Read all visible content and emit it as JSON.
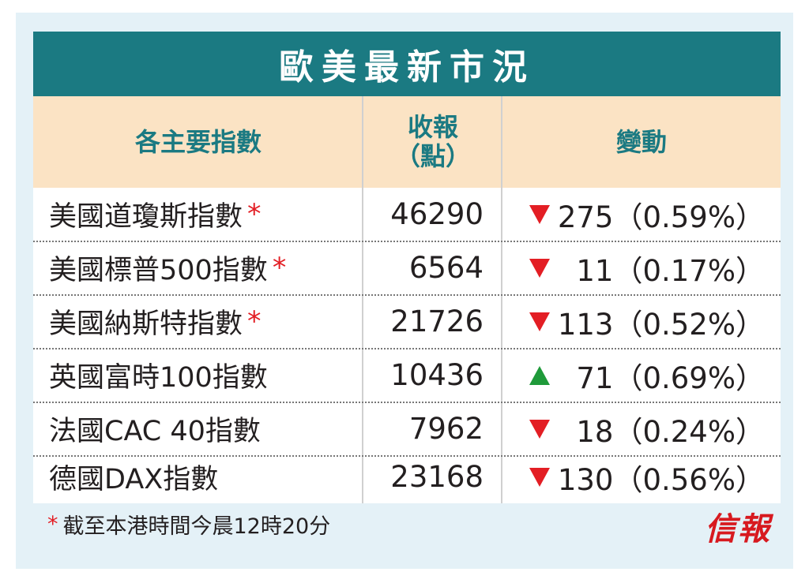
{
  "title": "歐美最新市況",
  "headers": {
    "index": "各主要指數",
    "close_line1": "收報",
    "close_line2": "（點）",
    "change": "變動"
  },
  "rows": [
    {
      "name": "美國道瓊斯指數",
      "star": "*",
      "value": "46290",
      "direction": "down",
      "change": "275（0.59%）"
    },
    {
      "name": "美國標普500指數",
      "star": "*",
      "value": "6564",
      "direction": "down",
      "change": "11（0.17%）"
    },
    {
      "name": "美國納斯特指數",
      "star": "*",
      "value": "21726",
      "direction": "down",
      "change": "113（0.52%）"
    },
    {
      "name": "英國富時100指數",
      "star": "",
      "value": "10436",
      "direction": "up",
      "change": "71（0.69%）"
    },
    {
      "name": "法國CAC 40指數",
      "star": "",
      "value": "7962",
      "direction": "down",
      "change": "18（0.24%）"
    },
    {
      "name": "德國DAX指數",
      "star": "",
      "value": "23168",
      "direction": "down",
      "change": "130（0.56%）"
    }
  ],
  "footnote": {
    "star": "*",
    "text": "截至本港時間今晨12時20分"
  },
  "logo": "信報",
  "colors": {
    "header_bg": "#1b7a82",
    "subheader_bg": "#fbe3c4",
    "down": "#e31e24",
    "up": "#1f9a3a",
    "footer_bg": "#e4f1f7"
  }
}
